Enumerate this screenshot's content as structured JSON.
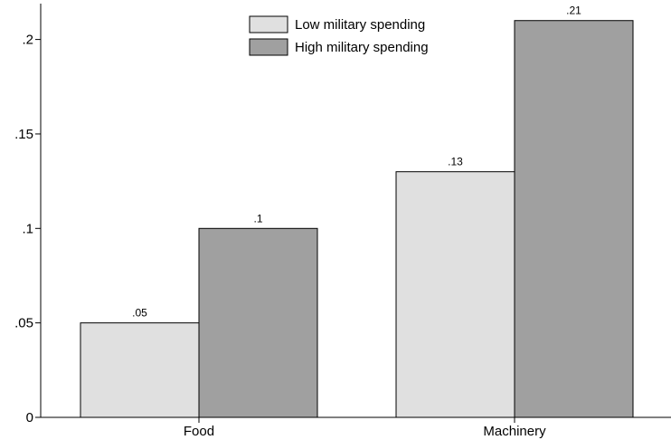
{
  "chart_data": {
    "type": "bar",
    "categories": [
      "Food",
      "Machinery"
    ],
    "series": [
      {
        "name": "Low military spending",
        "values": [
          0.05,
          0.13
        ],
        "value_labels": [
          ".05",
          ".13"
        ],
        "color": "#e0e0e0"
      },
      {
        "name": "High military spending",
        "values": [
          0.1,
          0.21
        ],
        "value_labels": [
          ".1",
          ".21"
        ],
        "color": "#a0a0a0"
      }
    ],
    "ylim": [
      0,
      0.21
    ],
    "yticks": [
      0,
      0.05,
      0.1,
      0.15,
      0.2
    ],
    "ytick_labels": [
      "0",
      ".05",
      ".1",
      ".15",
      ".2"
    ],
    "legend_position": "top-center",
    "grid": false,
    "bar_edge_color": "#000000",
    "title": "",
    "xlabel": "",
    "ylabel": ""
  }
}
